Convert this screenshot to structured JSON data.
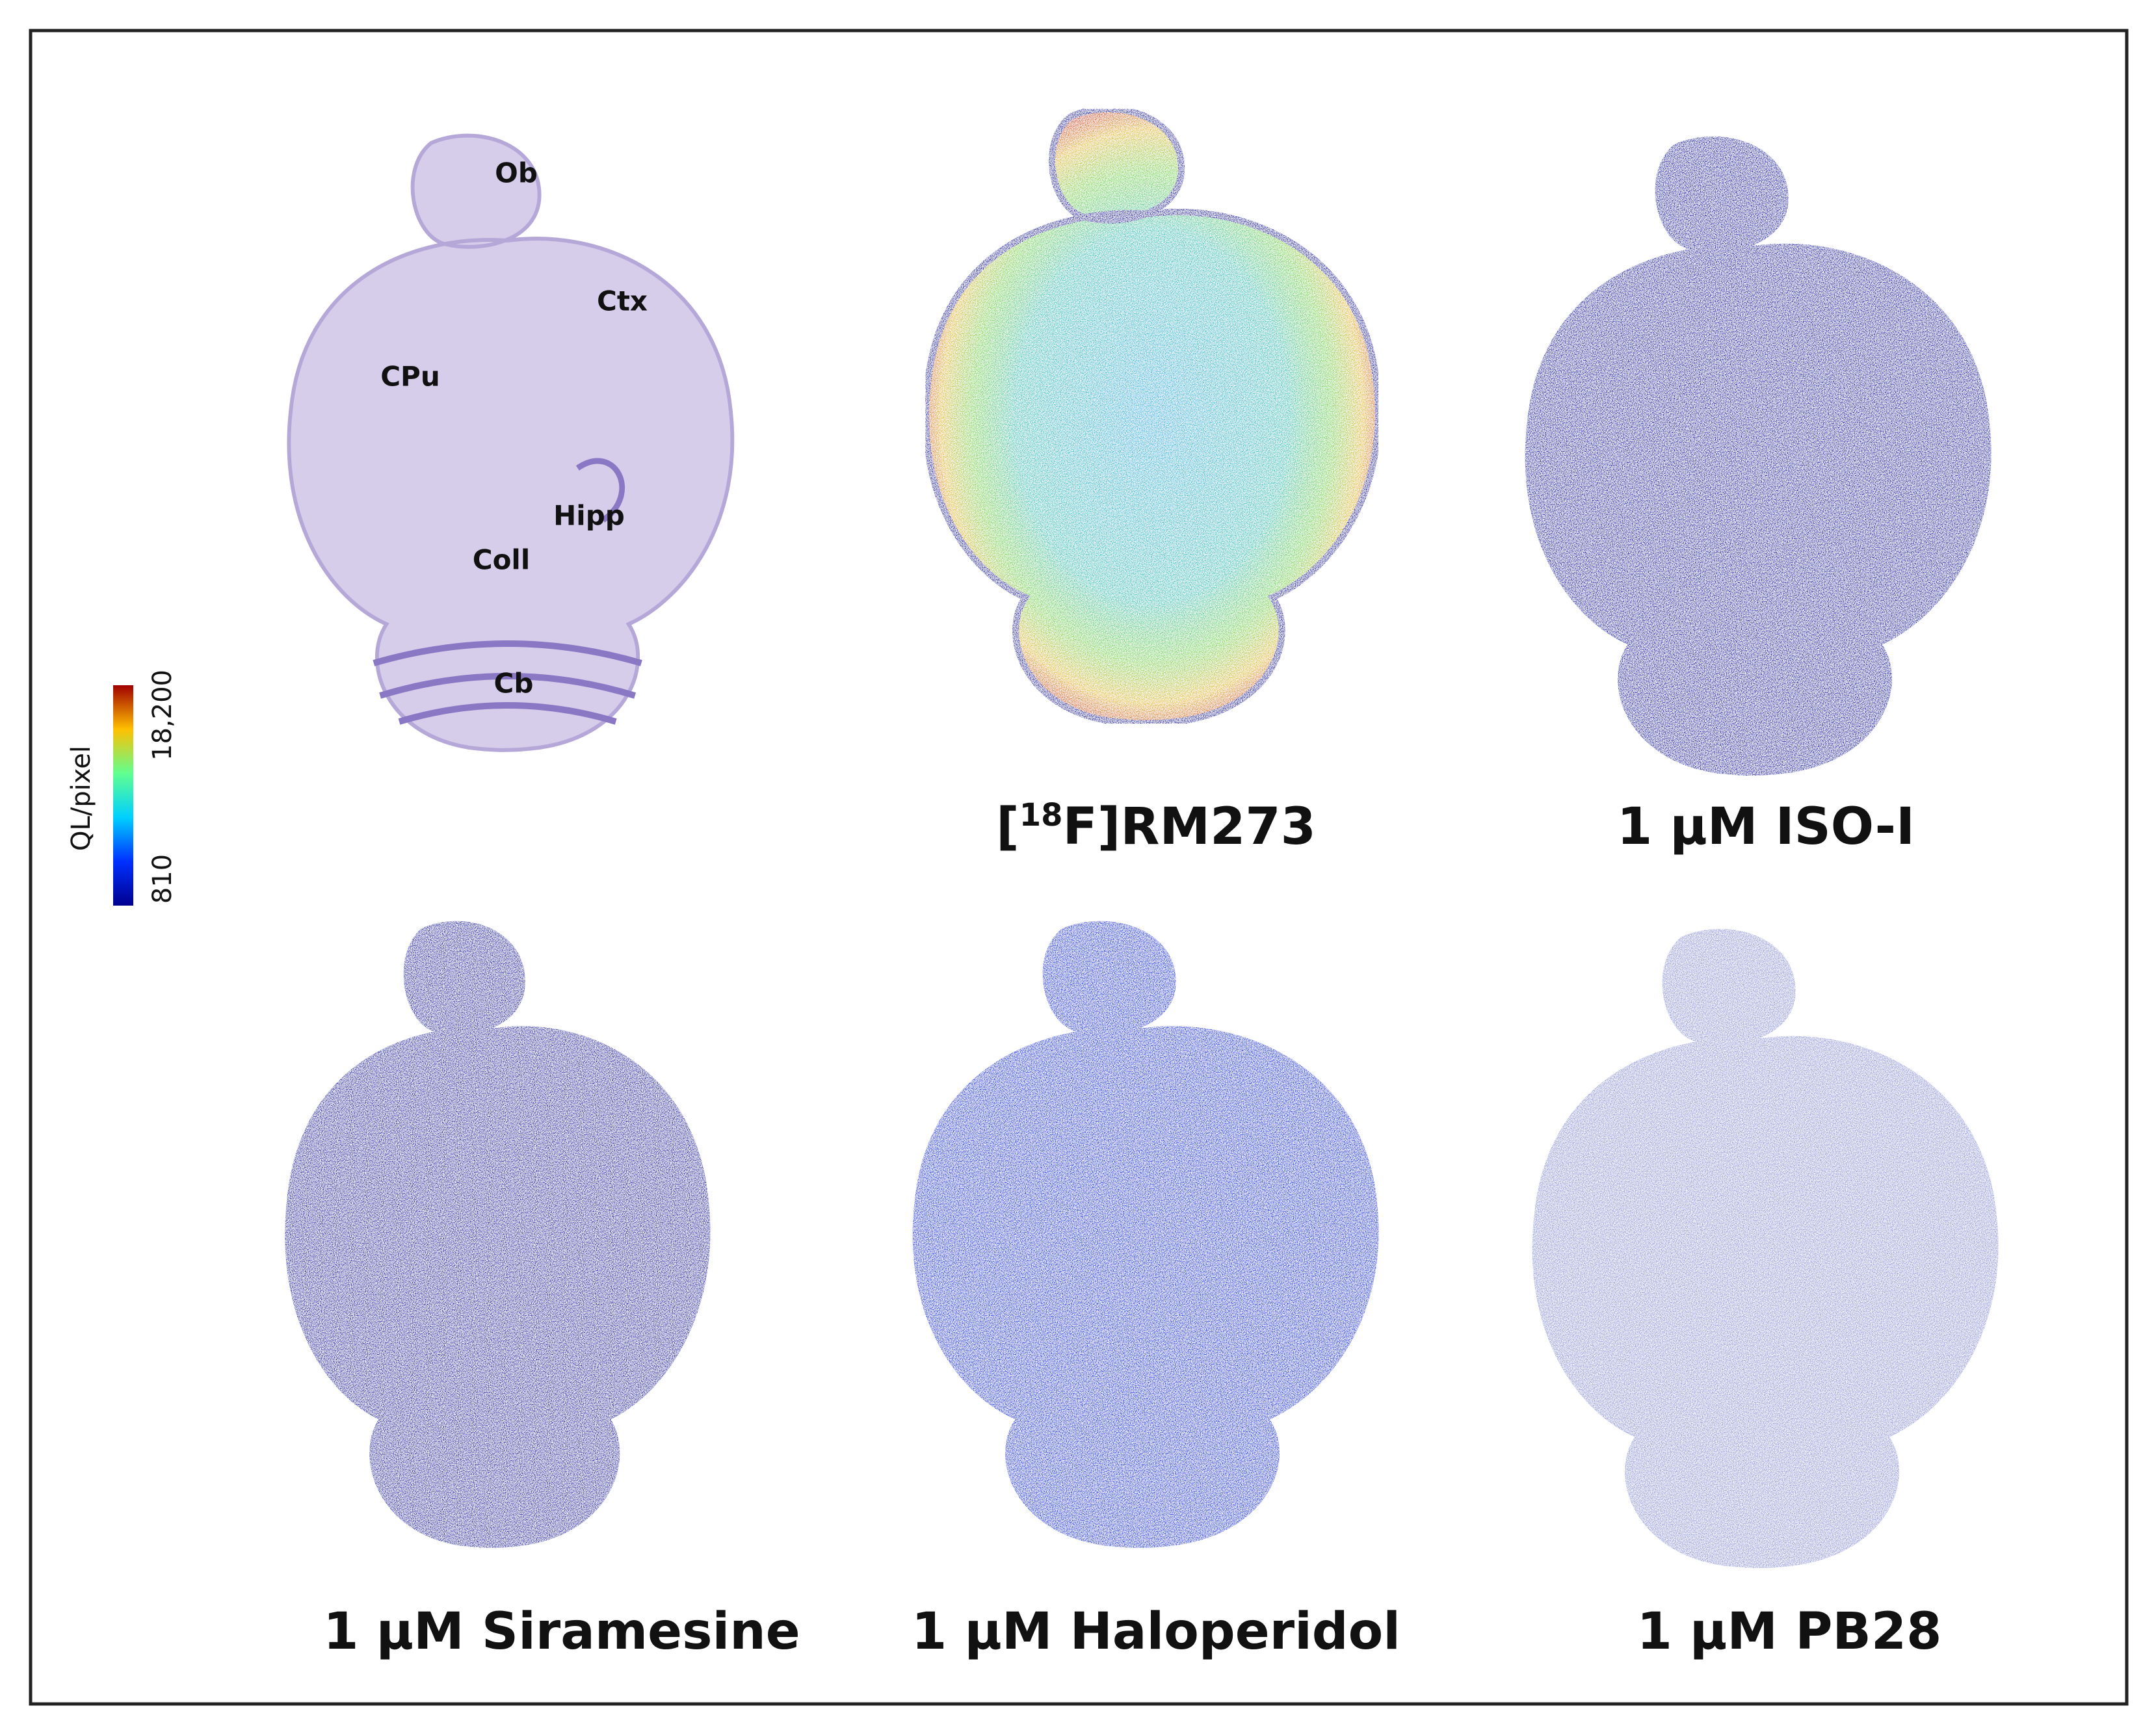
{
  "labels": [
    "Ob",
    "Ctx",
    "CPu",
    "Hipp",
    "Coll",
    "Cb"
  ],
  "colorbar": {
    "label": "QL/pixel",
    "max": "18,200",
    "min": "810"
  },
  "captions": [
    {
      "prefix": "[",
      "sup": "18",
      "text": "F]RM273"
    },
    "1 µM ISO-I",
    "1 µM Siramesine",
    "1 µM Haloperidol",
    "1 µM PB28"
  ]
}
